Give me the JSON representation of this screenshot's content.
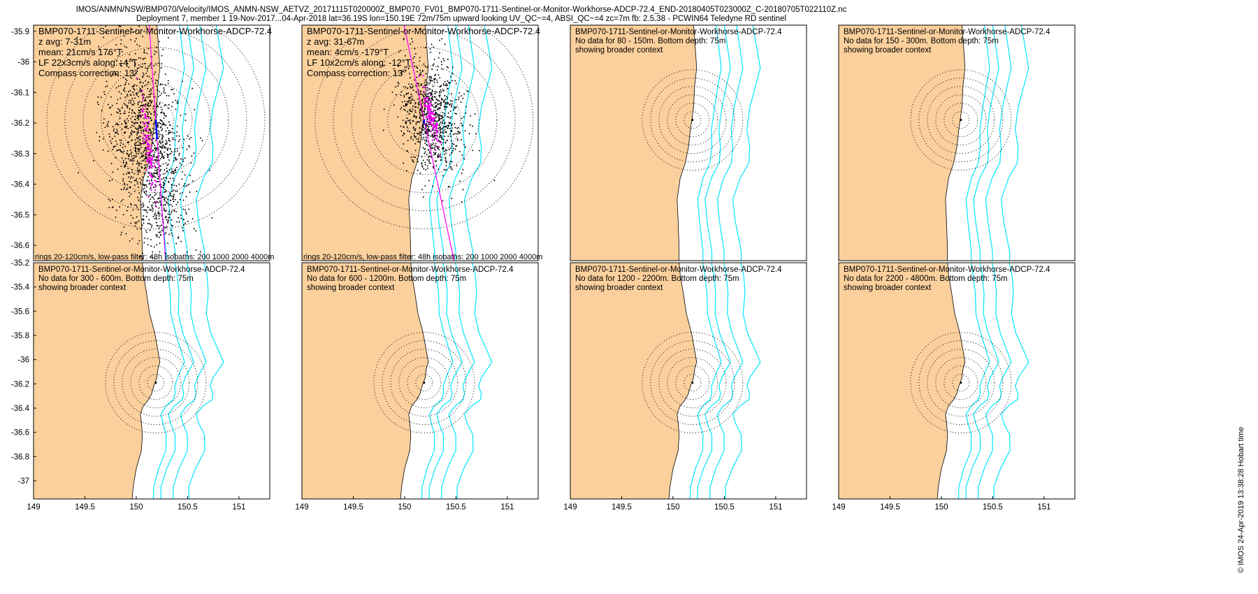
{
  "header": {
    "line1": "IMOS/ANMN/NSW/BMP070/Velocity/IMOS_ANMN-NSW_AETVZ_20171115T020000Z_BMP070_FV01_BMP070-1711-Sentinel-or-Monitor-Workhorse-ADCP-72.4_END-20180405T023000Z_C-20180705T022110Z.nc",
    "line2": "Deployment 7, member 1 19-Nov-2017...04-Apr-2018 lat=36.19S lon=150.19E 72m/75m upward looking UV_QC~=4, ABSI_QC~=4 zc=7m fb: 2.5.38 - PCWIN64 Teledyne RD sentinel"
  },
  "credit": "© IMOS 24-Apr-2019 13:38:28 Hobart time",
  "colors": {
    "land": "#fbd09d",
    "isobath": "#00e5ff",
    "scatter": "#000000",
    "lowpass": "#ff00ff",
    "mean": "#0000ff"
  },
  "chart_data": [
    {
      "type": "scatter",
      "title": "BMP070-1711-Sentinel-or-Monitor-Workhorse-ADCP-72.4",
      "lines": [
        "z avg: 7-31m",
        "mean: 21cm/s 176°T",
        "LF 22x3cm/s along: -4°T",
        "Compass correction: 13°"
      ],
      "footer": "rings 20-120cm/s, low-pass filter: 48h isobaths: 200 1000 2000 4000m",
      "xlim": [
        149,
        151.3
      ],
      "ylim": [
        -36.65,
        -35.88
      ],
      "yticks": [
        -35.9,
        -36,
        -36.1,
        -36.2,
        -36.3,
        -36.4,
        -36.5,
        -36.6
      ],
      "rings_cm_s": [
        20,
        40,
        60,
        80,
        100,
        120
      ],
      "mean_velocity": {
        "speed_cm_s": 21,
        "direction_deg_T": 176
      },
      "lowpass_axis": {
        "major_cm_s": 22,
        "minor_cm_s": 3,
        "direction_deg_T": -4
      }
    },
    {
      "type": "scatter",
      "title": "BMP070-1711-Sentinel-or-Monitor-Workhorse-ADCP-72.4",
      "lines": [
        "z avg: 31-67m",
        "mean: 4cm/s -179°T",
        "LF 10x2cm/s along: -12°T",
        "Compass correction: 13°"
      ],
      "footer": "rings 20-120cm/s, low-pass filter: 48h isobaths: 200 1000 2000 4000m",
      "xlim": [
        149,
        151.3
      ],
      "ylim": [
        -36.65,
        -35.88
      ],
      "rings_cm_s": [
        20,
        40,
        60,
        80,
        100,
        120
      ],
      "mean_velocity": {
        "speed_cm_s": 4,
        "direction_deg_T": -179
      },
      "lowpass_axis": {
        "major_cm_s": 10,
        "minor_cm_s": 2,
        "direction_deg_T": -12
      }
    },
    {
      "type": "scatter",
      "title": "BMP070-1711-Sentinel-or-Monitor-Workhorse-ADCP-72.4",
      "lines": [
        "No data for 80 - 150m. Bottom depth: 75m",
        "showing broader context"
      ],
      "xlim": [
        149,
        151.3
      ],
      "ylim": [
        -36.65,
        -35.88
      ]
    },
    {
      "type": "scatter",
      "title": "BMP070-1711-Sentinel-or-Monitor-Workhorse-ADCP-72.4",
      "lines": [
        "No data for 150 - 300m. Bottom depth: 75m",
        "showing broader context"
      ],
      "xlim": [
        149,
        151.3
      ],
      "ylim": [
        -36.65,
        -35.88
      ]
    },
    {
      "type": "scatter",
      "title": "BMP070-1711-Sentinel-or-Monitor-Workhorse-ADCP-72.4",
      "lines": [
        "No data for 300 - 600m. Bottom depth: 75m",
        "showing broader context"
      ],
      "xlim": [
        149,
        151.3
      ],
      "ylim": [
        -37.15,
        -35.2
      ],
      "xticks": [
        149,
        149.5,
        150,
        150.5,
        151
      ],
      "yticks": [
        -35.2,
        -35.4,
        -35.6,
        -35.8,
        -36,
        -36.2,
        -36.4,
        -36.6,
        -36.8,
        -37
      ]
    },
    {
      "type": "scatter",
      "title": "BMP070-1711-Sentinel-or-Monitor-Workhorse-ADCP-72.4",
      "lines": [
        "No data for 600 - 1200m. Bottom depth: 75m",
        "showing broader context"
      ],
      "xlim": [
        149,
        151.3
      ],
      "ylim": [
        -37.15,
        -35.2
      ],
      "xticks": [
        149,
        149.5,
        150,
        150.5,
        151
      ]
    },
    {
      "type": "scatter",
      "title": "BMP070-1711-Sentinel-or-Monitor-Workhorse-ADCP-72.4",
      "lines": [
        "No data for 1200 - 2200m. Bottom depth: 75m",
        "showing broader context"
      ],
      "xlim": [
        149,
        151.3
      ],
      "ylim": [
        -37.15,
        -35.2
      ],
      "xticks": [
        149,
        149.5,
        150,
        150.5,
        151
      ]
    },
    {
      "type": "scatter",
      "title": "BMP070-1711-Sentinel-or-Monitor-Workhorse-ADCP-72.4",
      "lines": [
        "No data for 2200 - 4800m. Bottom depth: 75m",
        "showing broader context"
      ],
      "xlim": [
        149,
        151.3
      ],
      "ylim": [
        -37.15,
        -35.2
      ],
      "xticks": [
        149,
        149.5,
        150,
        150.5,
        151
      ]
    }
  ]
}
